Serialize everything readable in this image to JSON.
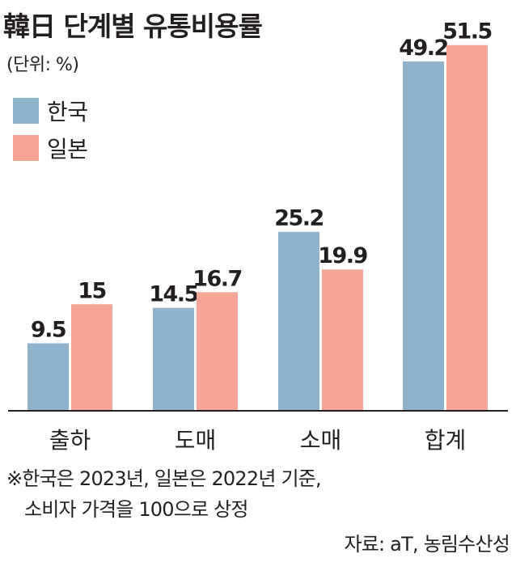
{
  "header": {
    "title": "韓日 단계별 유통비용률",
    "unit": "(단위: %)"
  },
  "legend": [
    {
      "label": "한국",
      "color": "#8fb3cd"
    },
    {
      "label": "일본",
      "color": "#f4a593"
    }
  ],
  "chart_data": {
    "type": "bar",
    "title": "韓日 단계별 유통비용률",
    "unit": "%",
    "categories": [
      "출하",
      "도매",
      "소매",
      "합계"
    ],
    "series": [
      {
        "name": "한국",
        "values": [
          9.5,
          14.5,
          25.2,
          49.2
        ],
        "labels": [
          "9.5",
          "14.5",
          "25.2",
          "49.2"
        ],
        "color": "#8fb3cd"
      },
      {
        "name": "일본",
        "values": [
          15,
          16.7,
          19.9,
          51.5
        ],
        "labels": [
          "15",
          "16.7",
          "19.9",
          "51.5"
        ],
        "color": "#f4a593"
      }
    ],
    "ylim": [
      0,
      55
    ],
    "grid": false,
    "legend_position": "top-left"
  },
  "footnote": {
    "line1": "※한국은 2023년, 일본은 2022년 기준,",
    "line2": "소비자 가격을 100으로 상정"
  },
  "source": "자료: aT, 농림수산성"
}
